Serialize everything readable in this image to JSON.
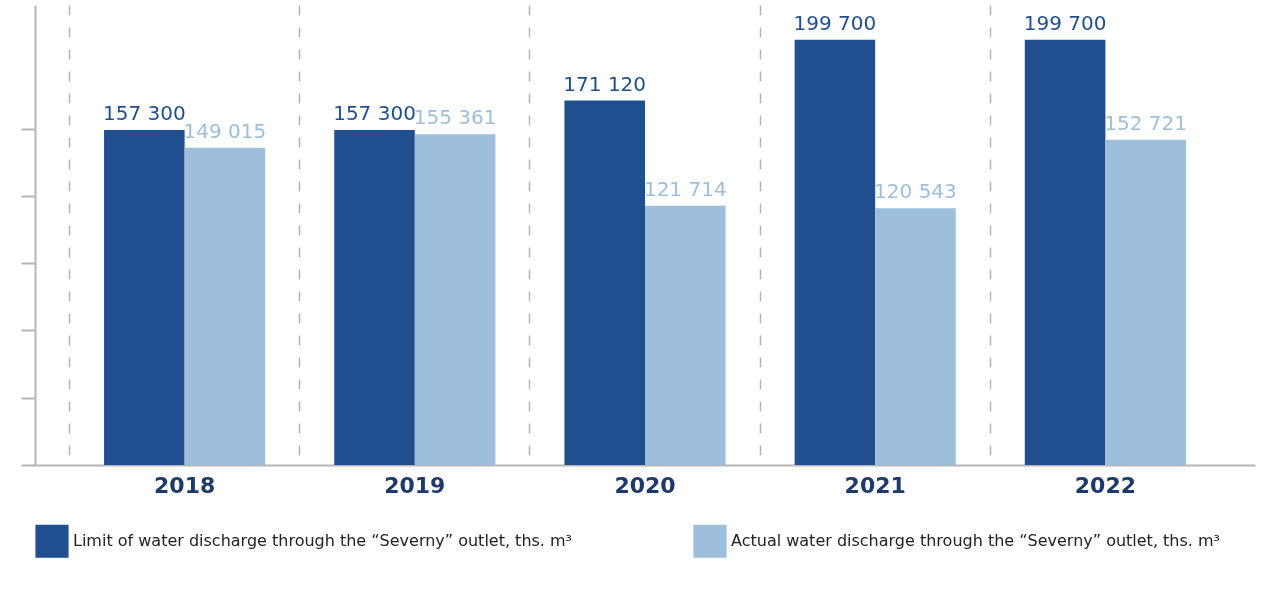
{
  "chart_data": {
    "type": "bar",
    "categories": [
      "2018",
      "2019",
      "2020",
      "2021",
      "2022"
    ],
    "series": [
      {
        "name": "Limit of water discharge through the “Severny” outlet, ths. m³",
        "color": "#1f4f8f",
        "values": [
          157300,
          157300,
          171120,
          199700,
          199700
        ],
        "value_labels": [
          "157 300",
          "157 300",
          "171 120",
          "199 700",
          "199 700"
        ]
      },
      {
        "name": "Actual water discharge through the “Severny” outlet, ths. m³",
        "color": "#9dbfdc",
        "values": [
          149015,
          155361,
          121714,
          120543,
          152721
        ],
        "value_labels": [
          "149 015",
          "155 361",
          "121 714",
          "120 543",
          "152 721"
        ]
      }
    ],
    "ylim": [
      0,
      216000
    ],
    "yticks": [
      {
        "value": 0,
        "label": null
      },
      {
        "value": 31600,
        "label": null
      },
      {
        "value": 63200,
        "label": null
      },
      {
        "value": 94800,
        "label": null
      },
      {
        "value": 126400,
        "label": null
      },
      {
        "value": 158000,
        "label": null
      }
    ],
    "tick_labels": "x",
    "grid": "x",
    "legend": "bottom"
  }
}
